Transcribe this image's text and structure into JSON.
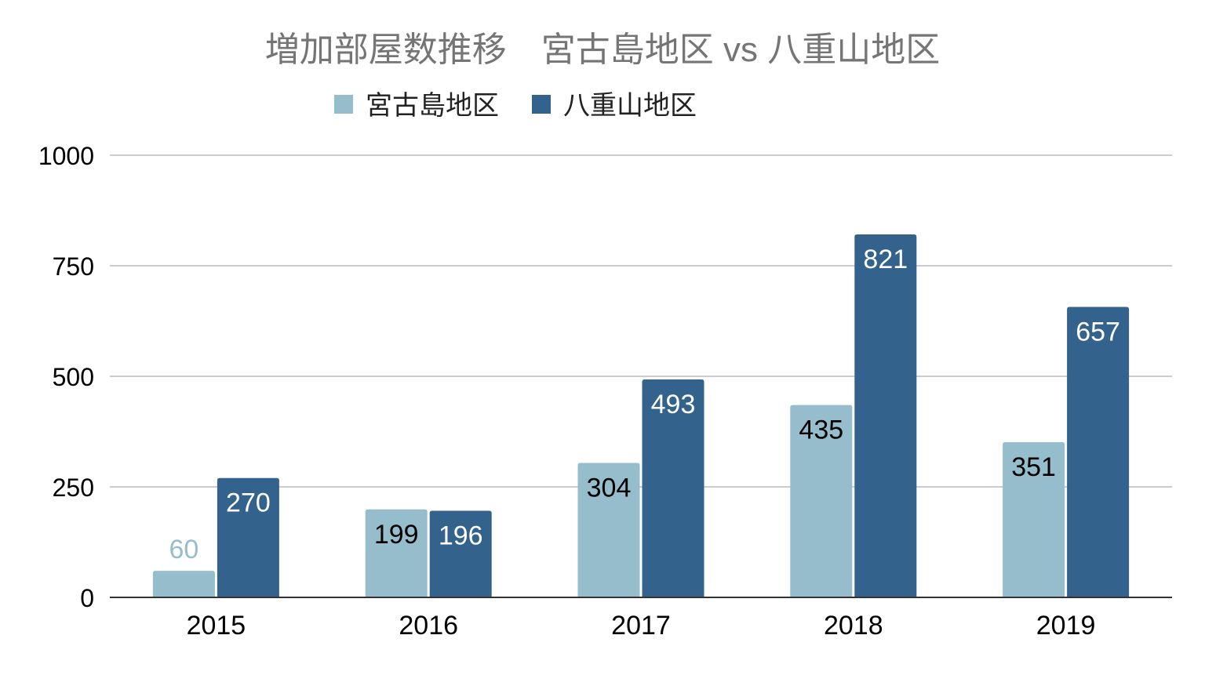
{
  "chart_data": {
    "type": "bar",
    "title": "増加部屋数推移　宮古島地区  vs 八重山地区",
    "categories": [
      "2015",
      "2016",
      "2017",
      "2018",
      "2019"
    ],
    "series": [
      {
        "name": "宮古島地区",
        "values": [
          60,
          199,
          304,
          435,
          351
        ],
        "color": "#95bdcc"
      },
      {
        "name": "八重山地区",
        "values": [
          270,
          196,
          493,
          821,
          657
        ],
        "color": "#33638c"
      }
    ],
    "ylim": [
      0,
      1000
    ],
    "yticks": [
      0,
      250,
      500,
      750,
      1000
    ],
    "xlabel": "",
    "ylabel": "",
    "legend_position": "top",
    "grid": true
  },
  "colors": {
    "title": "#757575",
    "grid": "#cccccc",
    "axis": "#333333",
    "label_dark": "#000000",
    "label_light": "#ffffff",
    "label_outside_series0": "#95bdcc"
  }
}
